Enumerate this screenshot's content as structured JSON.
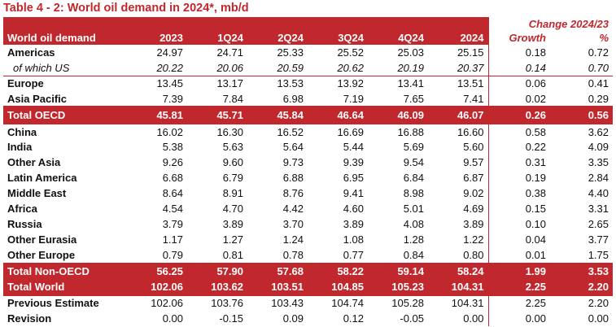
{
  "title": "Table 4 - 2: World oil demand in 2024*, mb/d",
  "header": {
    "row_label": "World oil demand",
    "columns": [
      "2023",
      "1Q24",
      "2Q24",
      "3Q24",
      "4Q24",
      "2024"
    ],
    "change_title": "Change 2024/23",
    "growth": "Growth",
    "pct": "%"
  },
  "rows": [
    {
      "label": "Americas",
      "values": [
        "24.97",
        "24.71",
        "25.33",
        "25.52",
        "25.03",
        "25.15"
      ],
      "growth": "0.18",
      "pct": "0.72"
    },
    {
      "label": "of which US",
      "values": [
        "20.22",
        "20.06",
        "20.59",
        "20.62",
        "20.19",
        "20.37"
      ],
      "growth": "0.14",
      "pct": "0.70"
    },
    {
      "label": "Europe",
      "values": [
        "13.45",
        "13.17",
        "13.53",
        "13.92",
        "13.41",
        "13.51"
      ],
      "growth": "0.06",
      "pct": "0.41"
    },
    {
      "label": "Asia Pacific",
      "values": [
        "7.39",
        "7.84",
        "6.98",
        "7.19",
        "7.65",
        "7.41"
      ],
      "growth": "0.02",
      "pct": "0.29"
    },
    {
      "label": "Total OECD",
      "values": [
        "45.81",
        "45.71",
        "45.84",
        "46.64",
        "46.09",
        "46.07"
      ],
      "growth": "0.26",
      "pct": "0.56"
    },
    {
      "label": "China",
      "values": [
        "16.02",
        "16.30",
        "16.52",
        "16.69",
        "16.88",
        "16.60"
      ],
      "growth": "0.58",
      "pct": "3.62"
    },
    {
      "label": "India",
      "values": [
        "5.38",
        "5.63",
        "5.64",
        "5.44",
        "5.69",
        "5.60"
      ],
      "growth": "0.22",
      "pct": "4.09"
    },
    {
      "label": "Other Asia",
      "values": [
        "9.26",
        "9.60",
        "9.73",
        "9.39",
        "9.54",
        "9.57"
      ],
      "growth": "0.31",
      "pct": "3.35"
    },
    {
      "label": "Latin America",
      "values": [
        "6.68",
        "6.79",
        "6.88",
        "6.95",
        "6.84",
        "6.87"
      ],
      "growth": "0.19",
      "pct": "2.84"
    },
    {
      "label": "Middle East",
      "values": [
        "8.64",
        "8.91",
        "8.76",
        "9.41",
        "8.98",
        "9.02"
      ],
      "growth": "0.38",
      "pct": "4.40"
    },
    {
      "label": "Africa",
      "values": [
        "4.54",
        "4.70",
        "4.42",
        "4.60",
        "5.01",
        "4.69"
      ],
      "growth": "0.15",
      "pct": "3.31"
    },
    {
      "label": "Russia",
      "values": [
        "3.79",
        "3.89",
        "3.70",
        "3.89",
        "4.08",
        "3.89"
      ],
      "growth": "0.10",
      "pct": "2.65"
    },
    {
      "label": "Other Eurasia",
      "values": [
        "1.17",
        "1.27",
        "1.24",
        "1.08",
        "1.28",
        "1.22"
      ],
      "growth": "0.04",
      "pct": "3.77"
    },
    {
      "label": "Other Europe",
      "values": [
        "0.79",
        "0.81",
        "0.78",
        "0.77",
        "0.84",
        "0.80"
      ],
      "growth": "0.01",
      "pct": "1.75"
    },
    {
      "label": "Total Non-OECD",
      "values": [
        "56.25",
        "57.90",
        "57.68",
        "58.22",
        "59.14",
        "58.24"
      ],
      "growth": "1.99",
      "pct": "3.53"
    },
    {
      "label": "Total World",
      "values": [
        "102.06",
        "103.62",
        "103.51",
        "104.85",
        "105.23",
        "104.31"
      ],
      "growth": "2.25",
      "pct": "2.20"
    },
    {
      "label": "Previous Estimate",
      "values": [
        "102.06",
        "103.76",
        "103.43",
        "104.74",
        "105.28",
        "104.31"
      ],
      "growth": "2.25",
      "pct": "2.20"
    },
    {
      "label": "Revision",
      "values": [
        "0.00",
        "-0.15",
        "0.09",
        "0.12",
        "-0.05",
        "0.00"
      ],
      "growth": "0.00",
      "pct": "0.00"
    }
  ]
}
